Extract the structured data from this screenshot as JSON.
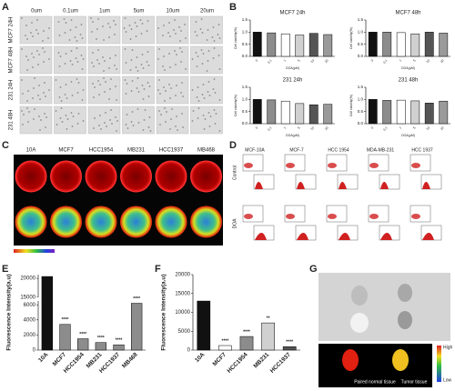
{
  "panels": {
    "A": {
      "label": "A",
      "columns": [
        "0um",
        "0.1um",
        "1um",
        "5um",
        "10um",
        "20um"
      ],
      "rows": [
        "MCF7 24H",
        "MCF7 48H",
        "231 24H",
        "231 48H"
      ]
    },
    "B": {
      "label": "B"
    },
    "C": {
      "label": "C",
      "columns": [
        "10A",
        "MCF7",
        "HCC1954",
        "MB231",
        "HCC1937",
        "MB468"
      ]
    },
    "D": {
      "label": "D",
      "columns": [
        "MCF-10A",
        "MCF-7",
        "HCC 1954",
        "MDA-MB-231",
        "HCC 1937"
      ],
      "rows": [
        "Control",
        "DOA"
      ]
    },
    "E": {
      "label": "E"
    },
    "F": {
      "label": "F"
    },
    "G": {
      "label": "G",
      "tissues": [
        "Paired normal tissue",
        "Tumor tissue"
      ],
      "scale": [
        "High",
        "Low"
      ]
    }
  },
  "chart_data": [
    {
      "type": "bar",
      "title": "MCF7  24h",
      "y_label": "Cell viability(%)",
      "x_label": "DOA(μM)",
      "categories": [
        "0",
        "0.1",
        "1",
        "5",
        "10",
        "20"
      ],
      "values": [
        1.0,
        0.97,
        0.93,
        0.88,
        0.95,
        0.9
      ],
      "colors": [
        "#111111",
        "#8c8c8c",
        "#ffffff",
        "#d0d0d0",
        "#555555",
        "#9a9a9a"
      ],
      "ylim": [
        0,
        1.5
      ],
      "yticks": [
        {
          "value": 0,
          "label": "0.0"
        },
        {
          "value": 0.5,
          "label": "0.5"
        },
        {
          "value": 1,
          "label": "1.0"
        },
        {
          "value": 1.5,
          "label": "1.5"
        }
      ]
    },
    {
      "type": "bar",
      "title": "MCF7  48h",
      "y_label": "Cell viability(%)",
      "x_label": "DOA(μM)",
      "categories": [
        "0",
        "0.1",
        "1",
        "5",
        "10",
        "20"
      ],
      "values": [
        1.0,
        1.0,
        0.98,
        0.93,
        1.0,
        0.96
      ],
      "colors": [
        "#111111",
        "#8c8c8c",
        "#ffffff",
        "#d0d0d0",
        "#555555",
        "#9a9a9a"
      ],
      "ylim": [
        0,
        1.5
      ],
      "yticks": [
        {
          "value": 0,
          "label": "0.0"
        },
        {
          "value": 0.5,
          "label": "0.5"
        },
        {
          "value": 1,
          "label": "1.0"
        },
        {
          "value": 1.5,
          "label": "1.5"
        }
      ]
    },
    {
      "type": "bar",
      "title": "231  24h",
      "y_label": "Cell viability(%)",
      "x_label": "DOA(μM)",
      "categories": [
        "0",
        "0.1",
        "1",
        "5",
        "10",
        "20"
      ],
      "values": [
        1.0,
        0.98,
        0.93,
        0.83,
        0.78,
        0.8
      ],
      "colors": [
        "#111111",
        "#8c8c8c",
        "#ffffff",
        "#d0d0d0",
        "#555555",
        "#9a9a9a"
      ],
      "ylim": [
        0,
        1.5
      ],
      "yticks": [
        {
          "value": 0,
          "label": "0.0"
        },
        {
          "value": 0.5,
          "label": "0.5"
        },
        {
          "value": 1,
          "label": "1.0"
        },
        {
          "value": 1.5,
          "label": "1.5"
        }
      ]
    },
    {
      "type": "bar",
      "title": "231  48h",
      "y_label": "Cell viability(%)",
      "x_label": "DOA(μM)",
      "categories": [
        "0",
        "0.1",
        "1",
        "5",
        "10",
        "20"
      ],
      "values": [
        1.0,
        0.96,
        0.97,
        0.94,
        0.85,
        0.93
      ],
      "colors": [
        "#111111",
        "#8c8c8c",
        "#ffffff",
        "#d0d0d0",
        "#555555",
        "#9a9a9a"
      ],
      "ylim": [
        0,
        1.5
      ],
      "yticks": [
        {
          "value": 0,
          "label": "0.0"
        },
        {
          "value": 0.5,
          "label": "0.5"
        },
        {
          "value": 1,
          "label": "1.0"
        },
        {
          "value": 1.5,
          "label": "1.5"
        }
      ]
    },
    {
      "type": "bar",
      "y_label": "Fluorescence Intensity(a.u)",
      "categories": [
        "10A",
        "MCF7",
        "HCC1954",
        "MB231",
        "HCC1937",
        "MB468"
      ],
      "values": [
        20500,
        3400,
        1500,
        1000,
        700,
        6200
      ],
      "annotations": [
        null,
        "****",
        "****",
        "****",
        "****",
        "****"
      ],
      "colors": [
        "#111111",
        "#8c8c8c",
        "#8c8c8c",
        "#8c8c8c",
        "#8c8c8c",
        "#8c8c8c"
      ],
      "ylim": [
        0,
        21000
      ],
      "ybreak": [
        6500,
        15000
      ],
      "yticks": [
        0,
        2000,
        4000,
        6000,
        15000,
        20000
      ]
    },
    {
      "type": "bar",
      "y_label": "Fluorescence Intensity(a.u)",
      "categories": [
        "10A",
        "MCF7",
        "HCC1954",
        "MB231",
        "HCC1937"
      ],
      "values": [
        13000,
        1200,
        3600,
        7200,
        900
      ],
      "annotations": [
        null,
        "****",
        "****",
        "**",
        "****"
      ],
      "colors": [
        "#111111",
        "#ffffff",
        "#8c8c8c",
        "#d0d0d0",
        "#555555"
      ],
      "ylim": [
        0,
        20000
      ],
      "yticks": [
        0,
        5000,
        10000,
        15000,
        20000
      ]
    }
  ]
}
